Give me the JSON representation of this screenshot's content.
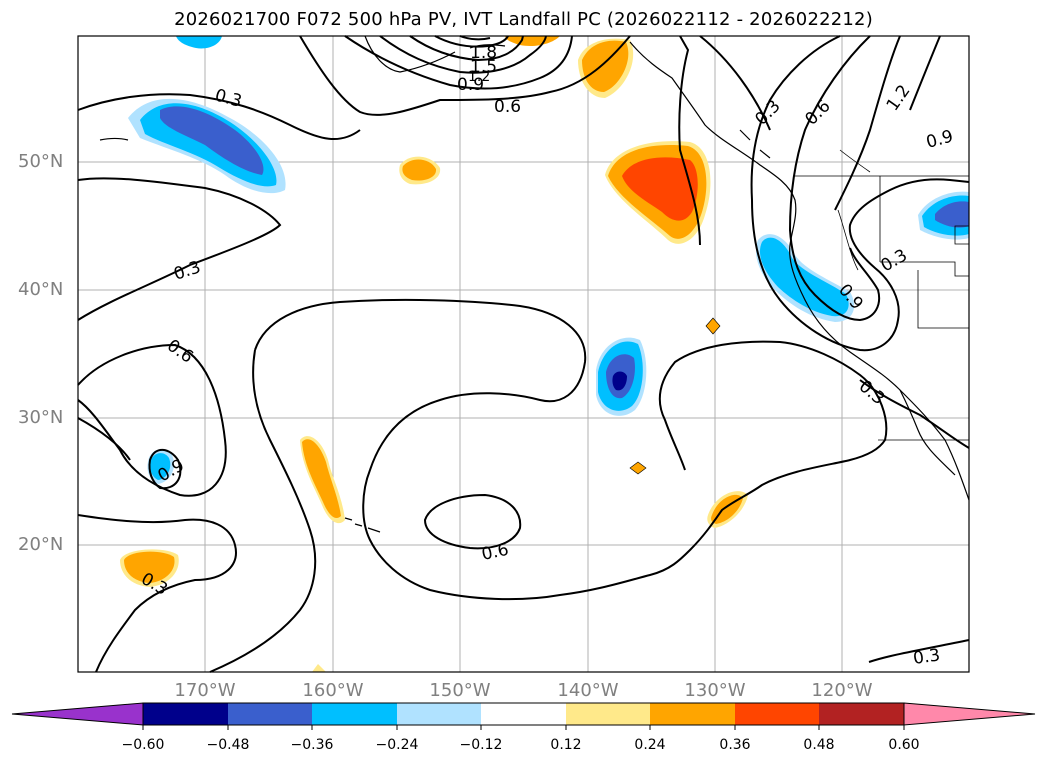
{
  "title": "2026021700 F072 500 hPa PV, IVT Landfall PC (2026022112 - 2026022212)",
  "axes": {
    "lat_labels": [
      "50°N",
      "40°N",
      "30°N",
      "20°N"
    ],
    "lon_labels": [
      "170°W",
      "160°W",
      "150°W",
      "140°W",
      "130°W",
      "120°W"
    ]
  },
  "contour_labels": {
    "c1": "1.8",
    "c2": "1.5",
    "c3": "1.2",
    "c4": "0.9",
    "c5": "0.6",
    "c6": "0.3",
    "c7": "0.3",
    "c8": "0.6",
    "c9": "1.2",
    "c10": "0.9",
    "c11": "0.3",
    "c12": "0.6",
    "c13": "0.9",
    "c14": "0.6",
    "c15": "0.3",
    "c16": "0.9",
    "c17": "0.3",
    "c18": "0.3",
    "c19": "0.3"
  },
  "colorbar": {
    "ticks": [
      "−0.60",
      "−0.48",
      "−0.36",
      "−0.24",
      "−0.12",
      "0.12",
      "0.24",
      "0.36",
      "0.48",
      "0.60"
    ],
    "colors": [
      "#9932cc",
      "#00008b",
      "#3a5fcd",
      "#00bfff",
      "#b0e2ff",
      "#ffffff",
      "#ffe98a",
      "#ffa500",
      "#ff4500",
      "#b22222",
      "#ff88aa"
    ]
  }
}
